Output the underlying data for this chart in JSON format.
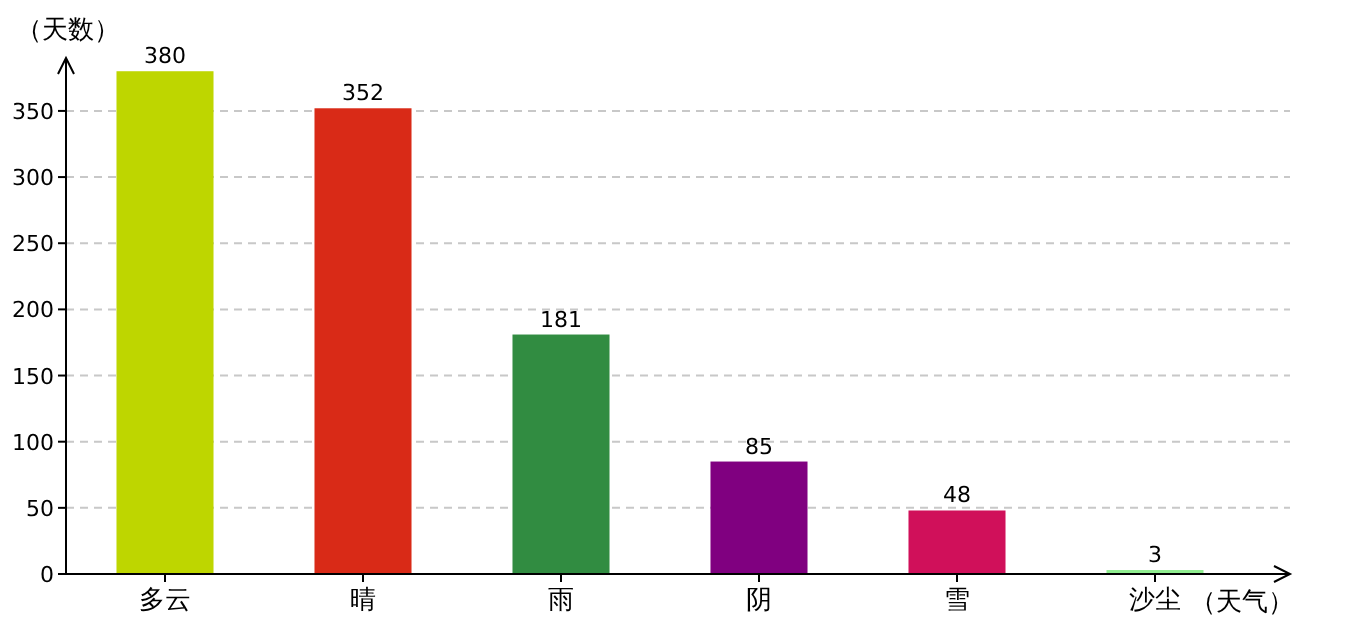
{
  "chart_data": {
    "type": "bar",
    "categories": [
      "多云",
      "晴",
      "雨",
      "阴",
      "雪",
      "沙尘"
    ],
    "values": [
      380,
      352,
      181,
      85,
      48,
      3
    ],
    "colors": [
      "#bed600",
      "#d92a17",
      "#318c41",
      "#800080",
      "#d0105a",
      "#90ee90"
    ],
    "ylim": [
      0,
      390
    ],
    "yticks": [
      0,
      50,
      100,
      150,
      200,
      250,
      300,
      350
    ],
    "ylabel": "（天数）",
    "xlabel": "（天气）",
    "data_labels": true,
    "grid": "y"
  }
}
